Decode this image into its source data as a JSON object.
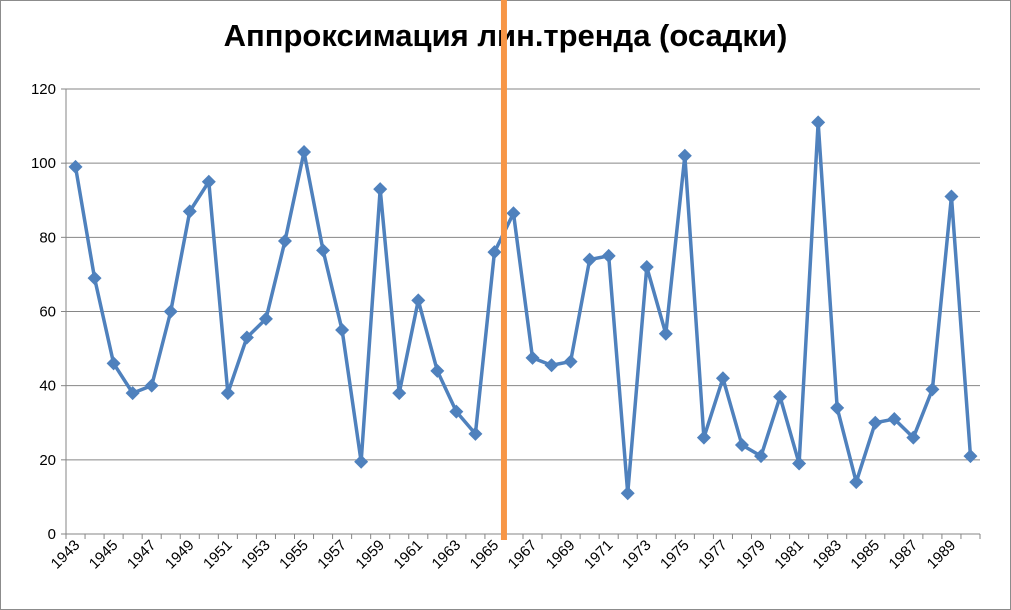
{
  "chart_data": {
    "type": "line",
    "title": "Аппроксимация лин.тренда (осадки)",
    "xlabel": "",
    "ylabel": "",
    "ylim": [
      0,
      120
    ],
    "y_ticks": [
      0,
      20,
      40,
      60,
      80,
      100,
      120
    ],
    "x_tick_labels": [
      "1943",
      "1945",
      "1947",
      "1949",
      "1951",
      "1953",
      "1955",
      "1957",
      "1959",
      "1961",
      "1963",
      "1965",
      "1967",
      "1969",
      "1971",
      "1973",
      "1975",
      "1977",
      "1979",
      "1981",
      "1983",
      "1985",
      "1987",
      "1989"
    ],
    "grid": "horizontal",
    "legend": "none",
    "marker": "diamond",
    "vertical_marker_year": 1965.5,
    "x": [
      1943,
      1944,
      1945,
      1946,
      1947,
      1948,
      1949,
      1950,
      1951,
      1952,
      1953,
      1954,
      1955,
      1956,
      1957,
      1958,
      1959,
      1960,
      1961,
      1962,
      1963,
      1964,
      1965,
      1966,
      1967,
      1968,
      1969,
      1970,
      1971,
      1972,
      1973,
      1974,
      1975,
      1976,
      1977,
      1978,
      1979,
      1980,
      1981,
      1982,
      1983,
      1984,
      1985,
      1986,
      1987,
      1988,
      1989,
      1990
    ],
    "series": [
      {
        "values": [
          99,
          69,
          46,
          38,
          40,
          60,
          87,
          95,
          38,
          53,
          58,
          79,
          103,
          76.5,
          55,
          19.5,
          93,
          38,
          63,
          44,
          33,
          27,
          76,
          86.5,
          47.5,
          45.5,
          46.5,
          74,
          75,
          11,
          72,
          54,
          102,
          26,
          42,
          24,
          21,
          37,
          19,
          111,
          34,
          14,
          30,
          31,
          26,
          39,
          91,
          21
        ]
      }
    ],
    "colors": {
      "line": "#4f81bd",
      "vertical_marker": "#f79646",
      "grid": "#868686"
    }
  }
}
